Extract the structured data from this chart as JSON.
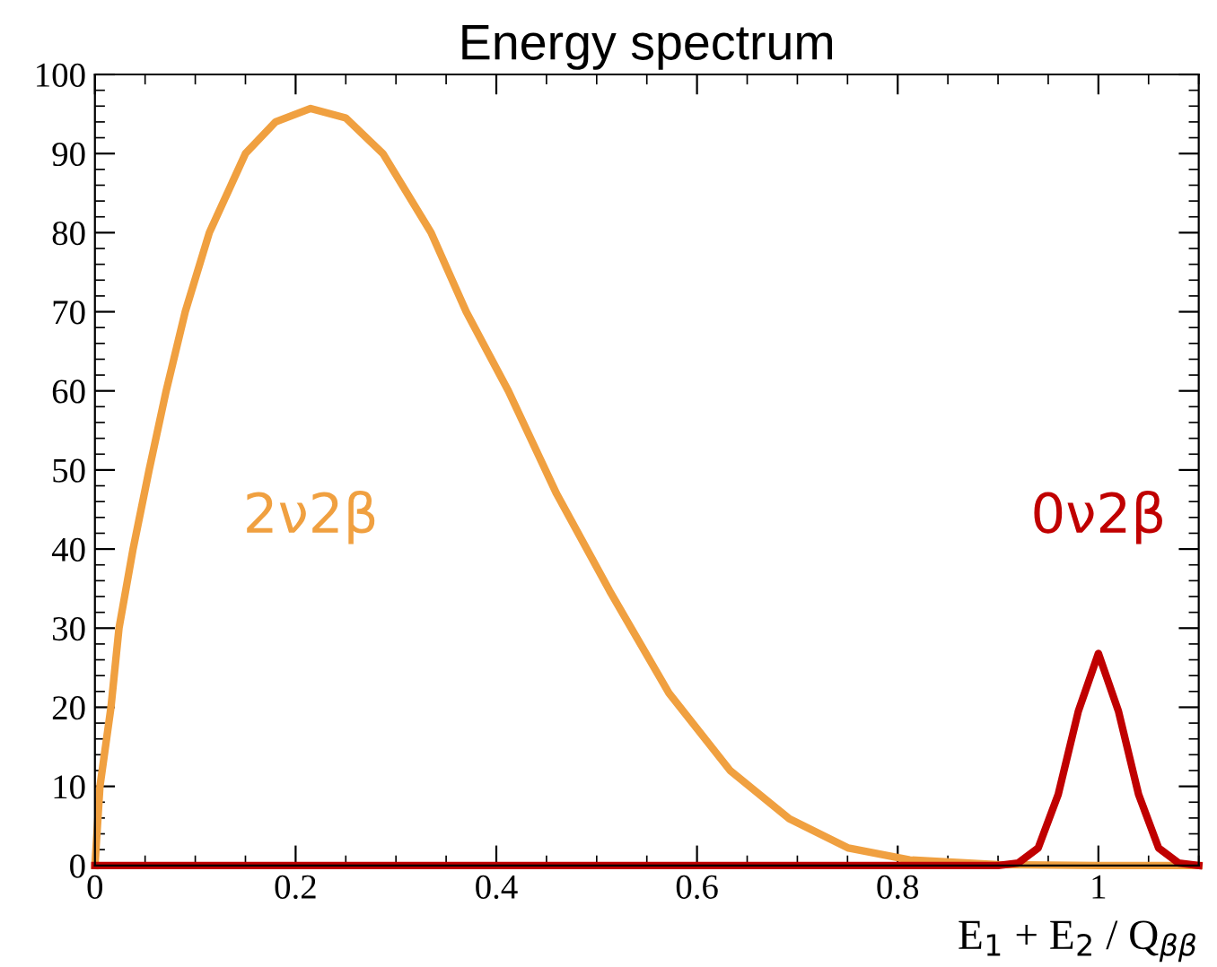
{
  "chart_data": {
    "type": "line",
    "title": "Energy spectrum",
    "xlabel": "E$_{1}$ + E$_{2}$ / Q$_{ββ}$",
    "xlim": [
      0,
      1.1
    ],
    "ylim": [
      0,
      100
    ],
    "xticks": [
      0,
      0.2,
      0.4,
      0.6,
      0.8,
      1
    ],
    "yticks": [
      0,
      10,
      20,
      30,
      40,
      50,
      60,
      70,
      80,
      90,
      100
    ],
    "grid": false,
    "legend": false,
    "marker": "none",
    "line_style": "solid",
    "series": [
      {
        "name": "2ν2β",
        "color": "#f0a040",
        "x": [
          0,
          0.005,
          0.016,
          0.024,
          0.038,
          0.054,
          0.071,
          0.09,
          0.114,
          0.15,
          0.18,
          0.215,
          0.25,
          0.287,
          0.335,
          0.37,
          0.412,
          0.46,
          0.513,
          0.572,
          0.633,
          0.692,
          0.751,
          0.812,
          0.9,
          1.0,
          1.1
        ],
        "values": [
          0,
          10,
          20,
          30,
          40,
          50,
          60,
          70,
          80,
          90,
          94,
          95.7,
          94.5,
          90,
          80,
          70,
          60,
          47,
          34.7,
          21.8,
          12,
          5.9,
          2.2,
          0.7,
          0.1,
          0,
          0
        ]
      },
      {
        "name": "0ν2β",
        "color": "#c00000",
        "x": [
          0,
          0.9,
          0.92,
          0.94,
          0.96,
          0.98,
          1.0,
          1.02,
          1.04,
          1.06,
          1.08,
          1.1
        ],
        "values": [
          0,
          0,
          0.3,
          2.2,
          9,
          19.5,
          26.8,
          19.5,
          9,
          2.2,
          0.3,
          0
        ]
      }
    ]
  }
}
